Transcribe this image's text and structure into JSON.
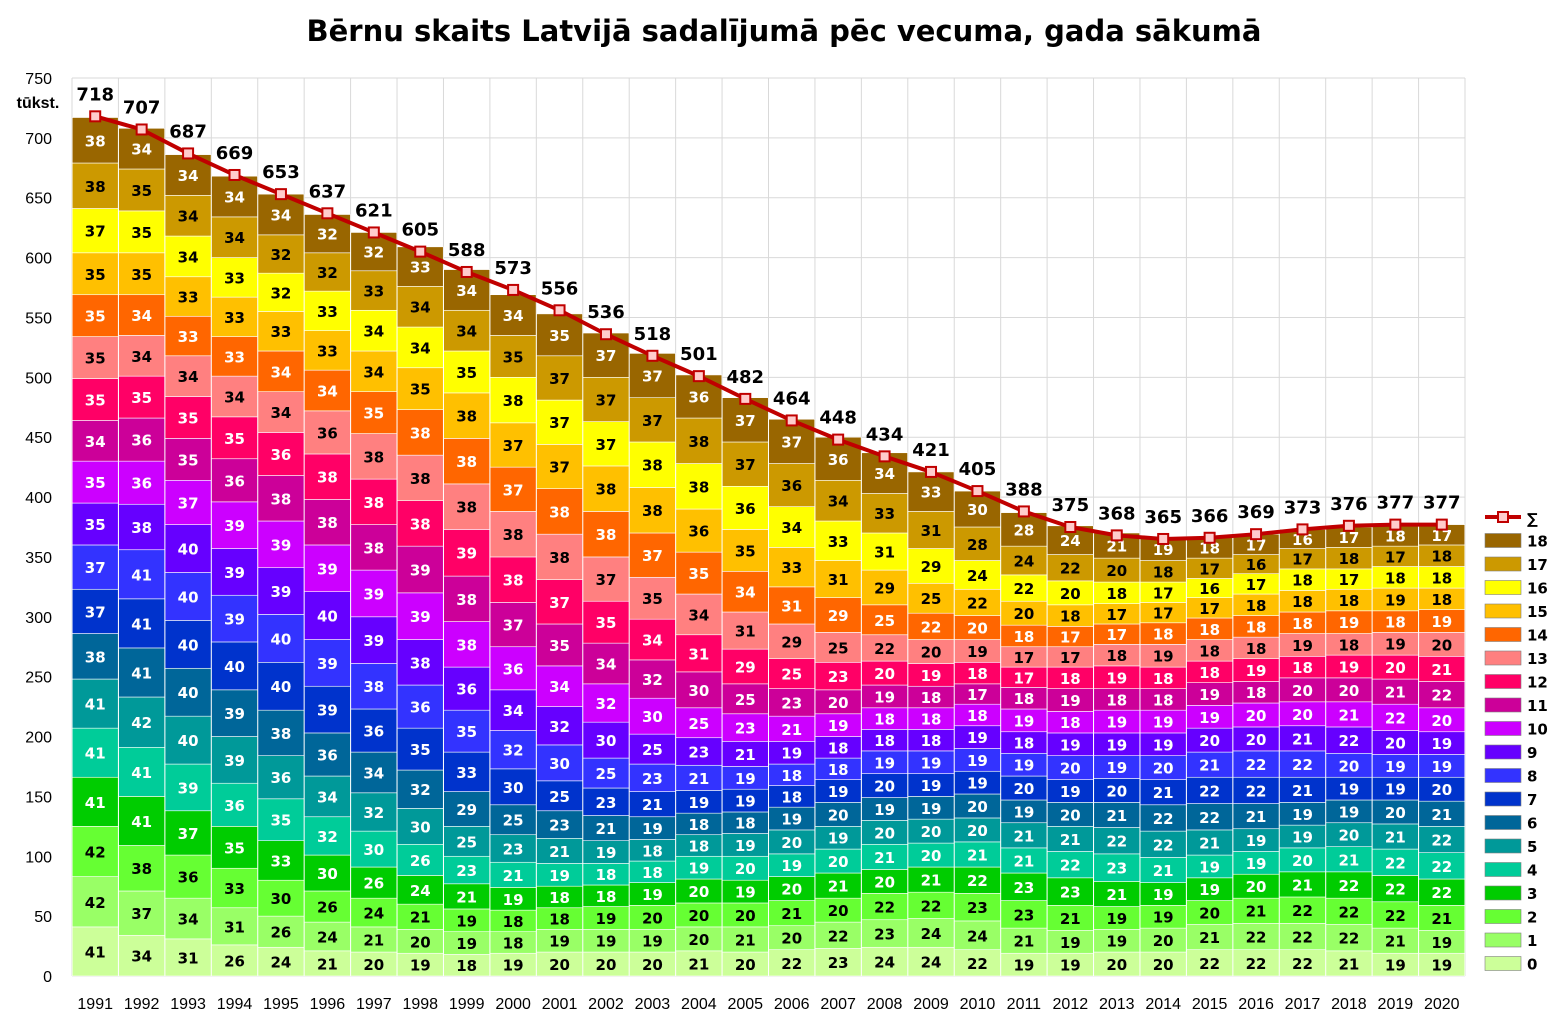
{
  "chart_data": {
    "type": "bar",
    "title": "Bērnu skaits Latvijā sadalījumā pēc vecuma, gada sākumā",
    "ylabel": "tūkst.",
    "ylim": [
      0,
      750
    ],
    "yticks": [
      0,
      50,
      100,
      150,
      200,
      250,
      300,
      350,
      400,
      450,
      500,
      550,
      600,
      650,
      700,
      750
    ],
    "grid": true,
    "legend_position": "right",
    "categories": [
      "1991",
      "1992",
      "1993",
      "1994",
      "1995",
      "1996",
      "1997",
      "1998",
      "1999",
      "2000",
      "2001",
      "2002",
      "2003",
      "2004",
      "2005",
      "2006",
      "2007",
      "2008",
      "2009",
      "2010",
      "2011",
      "2012",
      "2013",
      "2014",
      "2015",
      "2016",
      "2017",
      "2018",
      "2019",
      "2020"
    ],
    "series": [
      {
        "name": "0",
        "color": "#ccff99",
        "values": [
          41,
          34,
          31,
          26,
          24,
          21,
          20,
          19,
          18,
          19,
          20,
          20,
          20,
          21,
          20,
          22,
          23,
          24,
          24,
          22,
          19,
          19,
          20,
          20,
          22,
          22,
          22,
          21,
          19,
          19
        ]
      },
      {
        "name": "1",
        "color": "#99ff66",
        "values": [
          42,
          37,
          34,
          31,
          26,
          24,
          21,
          20,
          19,
          18,
          19,
          19,
          19,
          20,
          21,
          20,
          22,
          23,
          24,
          24,
          21,
          19,
          19,
          20,
          21,
          22,
          22,
          22,
          21,
          19
        ]
      },
      {
        "name": "2",
        "color": "#66ff33",
        "values": [
          42,
          38,
          36,
          33,
          30,
          26,
          24,
          21,
          19,
          18,
          18,
          19,
          20,
          20,
          20,
          21,
          20,
          22,
          22,
          23,
          23,
          21,
          19,
          19,
          20,
          21,
          22,
          22,
          22,
          21
        ]
      },
      {
        "name": "3",
        "color": "#00cc00",
        "values": [
          41,
          41,
          37,
          35,
          33,
          30,
          26,
          24,
          21,
          19,
          18,
          18,
          19,
          20,
          19,
          20,
          21,
          20,
          21,
          22,
          23,
          23,
          21,
          19,
          19,
          20,
          21,
          22,
          22,
          22
        ]
      },
      {
        "name": "4",
        "color": "#00cc99",
        "values": [
          41,
          41,
          39,
          36,
          35,
          32,
          30,
          26,
          23,
          21,
          19,
          18,
          18,
          19,
          20,
          19,
          20,
          21,
          20,
          21,
          21,
          22,
          23,
          21,
          19,
          19,
          20,
          21,
          22,
          22
        ]
      },
      {
        "name": "5",
        "color": "#009999",
        "values": [
          41,
          42,
          40,
          39,
          36,
          34,
          32,
          30,
          25,
          23,
          21,
          19,
          18,
          18,
          19,
          20,
          19,
          20,
          20,
          20,
          21,
          21,
          22,
          22,
          21,
          19,
          19,
          20,
          21,
          22
        ]
      },
      {
        "name": "6",
        "color": "#006699",
        "values": [
          38,
          41,
          40,
          39,
          38,
          36,
          34,
          32,
          29,
          25,
          23,
          21,
          19,
          18,
          18,
          19,
          20,
          19,
          19,
          20,
          19,
          20,
          21,
          22,
          22,
          21,
          19,
          19,
          20,
          21
        ]
      },
      {
        "name": "7",
        "color": "#0033cc",
        "values": [
          37,
          41,
          40,
          40,
          40,
          39,
          36,
          35,
          33,
          30,
          25,
          23,
          21,
          19,
          19,
          18,
          19,
          20,
          19,
          19,
          20,
          19,
          20,
          21,
          22,
          22,
          21,
          19,
          19,
          20
        ]
      },
      {
        "name": "8",
        "color": "#3333ff",
        "values": [
          37,
          41,
          40,
          39,
          40,
          39,
          38,
          36,
          35,
          32,
          30,
          25,
          23,
          21,
          19,
          18,
          18,
          19,
          19,
          19,
          19,
          20,
          19,
          20,
          21,
          22,
          22,
          20,
          19,
          19
        ]
      },
      {
        "name": "9",
        "color": "#6600ff",
        "values": [
          35,
          38,
          40,
          39,
          39,
          40,
          39,
          38,
          36,
          34,
          32,
          30,
          25,
          23,
          21,
          19,
          18,
          18,
          18,
          19,
          18,
          19,
          19,
          19,
          20,
          20,
          21,
          22,
          20,
          19
        ]
      },
      {
        "name": "10",
        "color": "#cc00ff",
        "values": [
          35,
          36,
          37,
          39,
          39,
          39,
          39,
          39,
          38,
          36,
          34,
          32,
          30,
          25,
          23,
          21,
          19,
          18,
          18,
          18,
          19,
          18,
          19,
          19,
          19,
          20,
          20,
          21,
          22,
          20
        ]
      },
      {
        "name": "11",
        "color": "#cc0099",
        "values": [
          34,
          36,
          35,
          36,
          38,
          38,
          38,
          39,
          38,
          37,
          35,
          34,
          32,
          30,
          25,
          23,
          20,
          19,
          18,
          17,
          18,
          19,
          18,
          18,
          19,
          18,
          20,
          20,
          21,
          22
        ]
      },
      {
        "name": "12",
        "color": "#ff0066",
        "values": [
          35,
          35,
          35,
          35,
          36,
          38,
          38,
          38,
          39,
          38,
          37,
          35,
          34,
          31,
          29,
          25,
          23,
          20,
          19,
          18,
          17,
          18,
          19,
          18,
          18,
          19,
          18,
          19,
          20,
          21
        ]
      },
      {
        "name": "13",
        "color": "#ff8080",
        "values": [
          35,
          34,
          34,
          34,
          34,
          36,
          38,
          38,
          38,
          38,
          38,
          37,
          35,
          34,
          31,
          29,
          25,
          22,
          20,
          19,
          17,
          17,
          18,
          19,
          18,
          18,
          19,
          18,
          19,
          20
        ]
      },
      {
        "name": "14",
        "color": "#ff6600",
        "values": [
          35,
          34,
          33,
          33,
          34,
          34,
          35,
          38,
          38,
          37,
          38,
          38,
          37,
          35,
          34,
          31,
          29,
          25,
          22,
          20,
          18,
          17,
          17,
          18,
          18,
          18,
          18,
          19,
          18,
          19
        ]
      },
      {
        "name": "15",
        "color": "#ffc000",
        "values": [
          35,
          35,
          33,
          33,
          33,
          33,
          34,
          35,
          38,
          37,
          37,
          38,
          38,
          36,
          35,
          33,
          31,
          29,
          25,
          22,
          20,
          18,
          17,
          17,
          17,
          18,
          18,
          18,
          19,
          18
        ]
      },
      {
        "name": "16",
        "color": "#ffff00",
        "values": [
          37,
          35,
          34,
          33,
          32,
          33,
          34,
          34,
          35,
          38,
          37,
          37,
          38,
          38,
          36,
          34,
          33,
          31,
          29,
          24,
          22,
          20,
          18,
          17,
          16,
          17,
          18,
          17,
          18,
          18
        ]
      },
      {
        "name": "17",
        "color": "#cc9900",
        "values": [
          38,
          35,
          34,
          34,
          32,
          32,
          33,
          34,
          34,
          35,
          37,
          37,
          37,
          38,
          37,
          36,
          34,
          33,
          31,
          28,
          24,
          22,
          20,
          18,
          17,
          16,
          17,
          18,
          17,
          18
        ]
      },
      {
        "name": "18",
        "color": "#996600",
        "values": [
          38,
          34,
          34,
          34,
          34,
          32,
          32,
          33,
          34,
          34,
          35,
          37,
          37,
          36,
          37,
          37,
          36,
          34,
          33,
          30,
          28,
          24,
          21,
          19,
          18,
          17,
          16,
          17,
          18,
          17
        ]
      }
    ],
    "totals": {
      "name": "∑",
      "color": "#c00000",
      "values": [
        718,
        707,
        687,
        669,
        653,
        637,
        621,
        605,
        588,
        573,
        556,
        536,
        518,
        501,
        482,
        464,
        448,
        434,
        421,
        405,
        388,
        375,
        368,
        365,
        366,
        369,
        373,
        376,
        377,
        377
      ]
    }
  }
}
